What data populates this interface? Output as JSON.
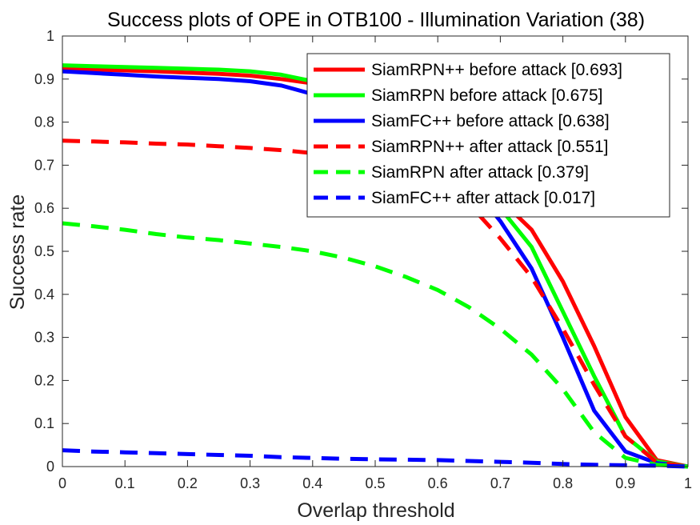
{
  "chart_data": {
    "type": "line",
    "title": "Success plots of OPE in OTB100 - Illumination Variation (38)",
    "xlabel": "Overlap threshold",
    "ylabel": "Success rate",
    "xlim": [
      0,
      1
    ],
    "ylim": [
      0,
      1
    ],
    "xticks": [
      "0",
      "0.1",
      "0.2",
      "0.3",
      "0.4",
      "0.5",
      "0.6",
      "0.7",
      "0.8",
      "0.9",
      "1"
    ],
    "yticks": [
      "0",
      "0.1",
      "0.2",
      "0.3",
      "0.4",
      "0.5",
      "0.6",
      "0.7",
      "0.8",
      "0.9",
      "1"
    ],
    "grid": false,
    "legend_position": "top-right",
    "series": [
      {
        "name": "SiamRPN++ before attack [0.693]",
        "color": "#ff0000",
        "style": "solid",
        "x": [
          0,
          0.05,
          0.1,
          0.15,
          0.2,
          0.25,
          0.3,
          0.35,
          0.4,
          0.45,
          0.5,
          0.55,
          0.6,
          0.65,
          0.7,
          0.75,
          0.8,
          0.85,
          0.9,
          0.95,
          1.0
        ],
        "y": [
          0.925,
          0.922,
          0.92,
          0.918,
          0.915,
          0.912,
          0.908,
          0.9,
          0.89,
          0.875,
          0.855,
          0.825,
          0.785,
          0.72,
          0.62,
          0.55,
          0.43,
          0.28,
          0.115,
          0.015,
          0.0
        ]
      },
      {
        "name": "SiamRPN before attack [0.675]",
        "color": "#00ff00",
        "style": "solid",
        "x": [
          0,
          0.05,
          0.1,
          0.15,
          0.2,
          0.25,
          0.3,
          0.35,
          0.4,
          0.45,
          0.5,
          0.55,
          0.6,
          0.65,
          0.7,
          0.75,
          0.8,
          0.85,
          0.9,
          0.95,
          1.0
        ],
        "y": [
          0.932,
          0.93,
          0.928,
          0.926,
          0.924,
          0.922,
          0.918,
          0.91,
          0.895,
          0.875,
          0.85,
          0.815,
          0.77,
          0.7,
          0.6,
          0.51,
          0.36,
          0.21,
          0.07,
          0.012,
          0.0
        ]
      },
      {
        "name": "SiamFC++ before attack [0.638]",
        "color": "#0000ff",
        "style": "solid",
        "x": [
          0,
          0.05,
          0.1,
          0.15,
          0.2,
          0.25,
          0.3,
          0.35,
          0.4,
          0.45,
          0.5,
          0.55,
          0.6,
          0.65,
          0.7,
          0.75,
          0.8,
          0.85,
          0.9,
          0.95,
          1.0
        ],
        "y": [
          0.918,
          0.914,
          0.91,
          0.906,
          0.903,
          0.9,
          0.895,
          0.885,
          0.865,
          0.84,
          0.81,
          0.77,
          0.72,
          0.66,
          0.57,
          0.46,
          0.3,
          0.13,
          0.035,
          0.008,
          0.0
        ]
      },
      {
        "name": "SiamRPN++ after attack [0.551]",
        "color": "#ff0000",
        "style": "dashed",
        "x": [
          0,
          0.05,
          0.1,
          0.15,
          0.2,
          0.25,
          0.3,
          0.35,
          0.4,
          0.45,
          0.5,
          0.55,
          0.6,
          0.65,
          0.7,
          0.75,
          0.8,
          0.85,
          0.9,
          0.95,
          1.0
        ],
        "y": [
          0.757,
          0.755,
          0.753,
          0.75,
          0.748,
          0.744,
          0.74,
          0.735,
          0.728,
          0.718,
          0.705,
          0.685,
          0.655,
          0.61,
          0.53,
          0.44,
          0.32,
          0.19,
          0.07,
          0.01,
          0.0
        ]
      },
      {
        "name": "SiamRPN after attack [0.379]",
        "color": "#00ff00",
        "style": "dashed",
        "x": [
          0,
          0.05,
          0.1,
          0.15,
          0.2,
          0.25,
          0.3,
          0.35,
          0.4,
          0.45,
          0.5,
          0.55,
          0.6,
          0.65,
          0.7,
          0.75,
          0.8,
          0.85,
          0.9,
          0.95,
          1.0
        ],
        "y": [
          0.565,
          0.558,
          0.55,
          0.54,
          0.532,
          0.526,
          0.518,
          0.51,
          0.5,
          0.485,
          0.465,
          0.44,
          0.41,
          0.37,
          0.32,
          0.26,
          0.18,
          0.08,
          0.02,
          0.004,
          0.0
        ]
      },
      {
        "name": "SiamFC++ after attack [0.017]",
        "color": "#0000ff",
        "style": "dashed",
        "x": [
          0,
          0.05,
          0.1,
          0.15,
          0.2,
          0.25,
          0.3,
          0.35,
          0.4,
          0.45,
          0.5,
          0.55,
          0.6,
          0.65,
          0.7,
          0.75,
          0.8,
          0.85,
          0.9,
          0.95,
          1.0
        ],
        "y": [
          0.038,
          0.035,
          0.033,
          0.031,
          0.029,
          0.027,
          0.025,
          0.022,
          0.02,
          0.018,
          0.017,
          0.016,
          0.015,
          0.013,
          0.011,
          0.009,
          0.006,
          0.004,
          0.003,
          0.002,
          0.0
        ]
      }
    ]
  }
}
